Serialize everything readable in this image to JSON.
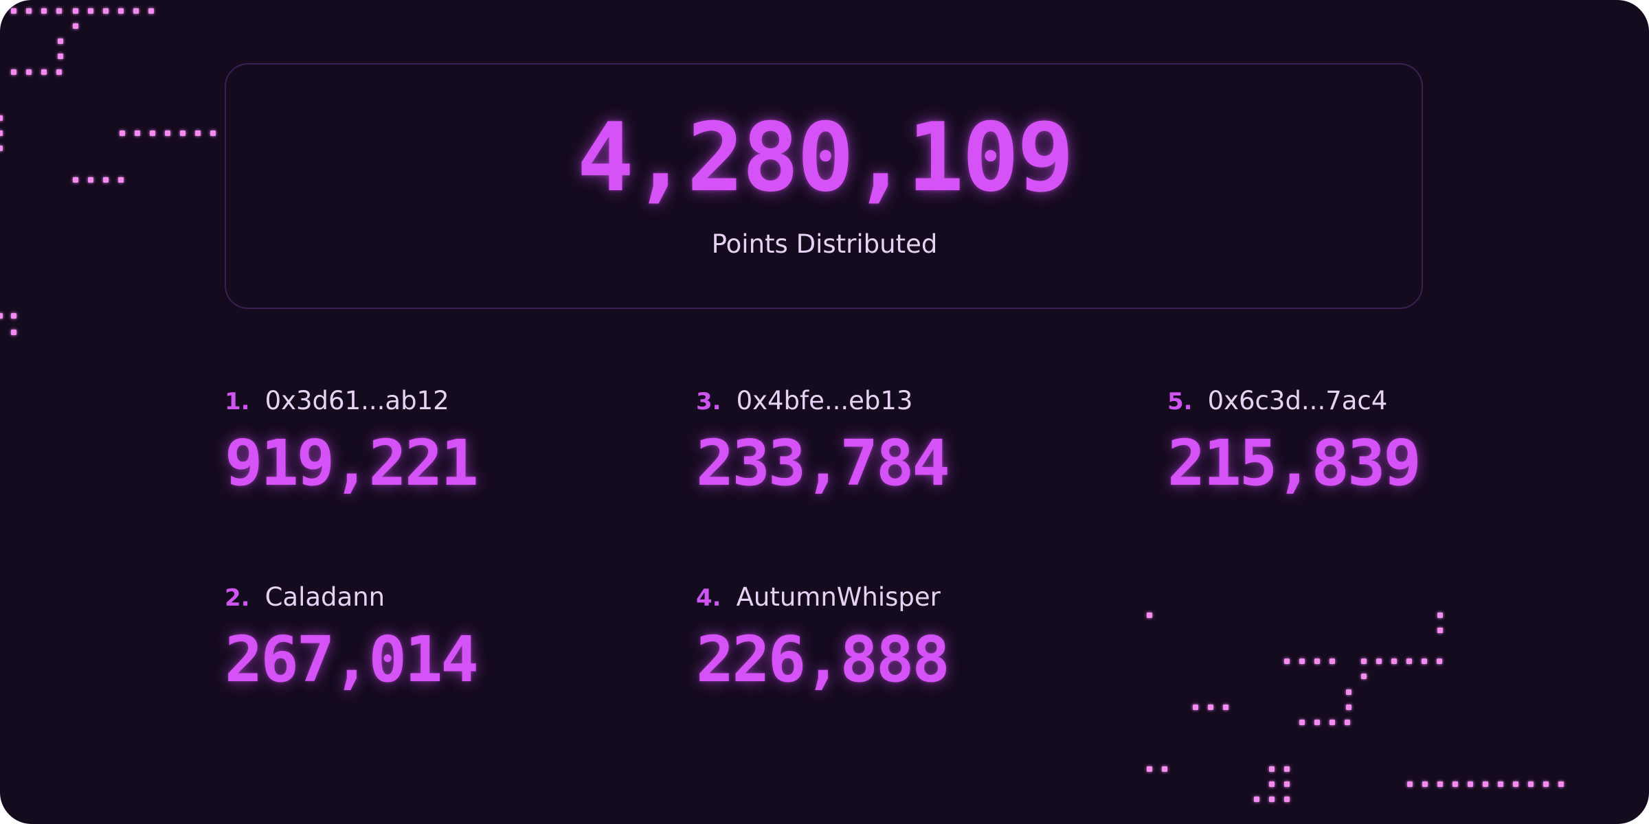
{
  "summary": {
    "total_points": "4,280,109",
    "label": "Points Distributed"
  },
  "leaderboard": [
    {
      "rank": "1.",
      "name": "0x3d61...ab12",
      "points": "919,221"
    },
    {
      "rank": "2.",
      "name": "Caladann",
      "points": "267,014"
    },
    {
      "rank": "3.",
      "name": "0x4bfe...eb13",
      "points": "233,784"
    },
    {
      "rank": "4.",
      "name": "AutumnWhisper",
      "points": "226,888"
    },
    {
      "rank": "5.",
      "name": "0x6c3d...7ac4",
      "points": "215,839"
    }
  ],
  "colors": {
    "background": "#150b1f",
    "accent": "#d553f6",
    "text": "#e6d3f3",
    "card_border": "#3a2152",
    "decoration_dots": "#f38bf0"
  }
}
